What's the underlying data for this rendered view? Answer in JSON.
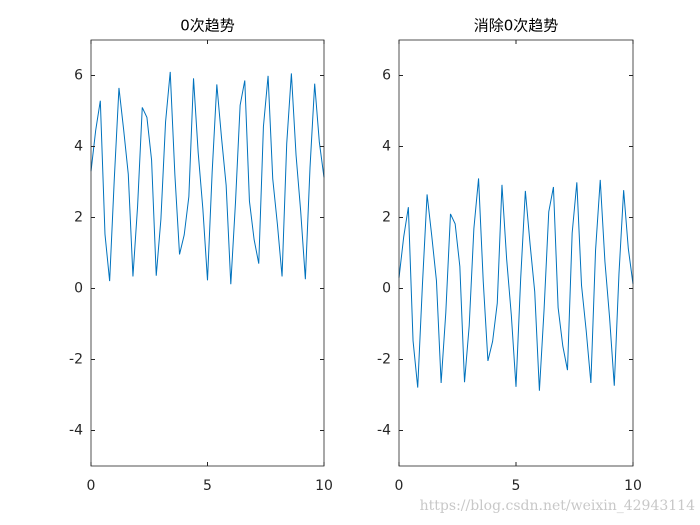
{
  "chart_data": [
    {
      "type": "line",
      "title": "0次趋势",
      "x": [
        0,
        0.2,
        0.4,
        0.6,
        0.8,
        1,
        1.2,
        1.4,
        1.6,
        1.8,
        2,
        2.2,
        2.4,
        2.6,
        2.8,
        3,
        3.2,
        3.4,
        3.6,
        3.8,
        4,
        4.2,
        4.4,
        4.6,
        4.8,
        5,
        5.2,
        5.4,
        5.6,
        5.8,
        6,
        6.2,
        6.4,
        6.6,
        6.8,
        7,
        7.2,
        7.4,
        7.6,
        7.8,
        8,
        8.2,
        8.4,
        8.6,
        8.8,
        9,
        9.2,
        9.4,
        9.6,
        9.8,
        10
      ],
      "series": [
        {
          "color": "#0072bd",
          "values": [
            3.3,
            4.45,
            5.29,
            1.53,
            0.21,
            3.09,
            5.65,
            4.48,
            3.22,
            0.34,
            2.32,
            5.1,
            4.82,
            3.62,
            0.36,
            1.95,
            4.69,
            6.1,
            3.2,
            0.96,
            1.51,
            2.59,
            5.92,
            3.83,
            2.25,
            0.23,
            3.28,
            5.75,
            4.26,
            2.91,
            0.12,
            2.41,
            5.16,
            5.86,
            2.46,
            1.38,
            0.7,
            4.56,
            5.99,
            3.09,
            1.81,
            0.34,
            4.08,
            6.06,
            3.76,
            2.17,
            0.26,
            3.41,
            5.77,
            4.12,
            3.13
          ]
        }
      ],
      "xlim": [
        0,
        10
      ],
      "xticks": [
        0,
        5,
        10
      ],
      "ylim": [
        -5,
        7
      ],
      "yticks": [
        -4,
        -2,
        0,
        2,
        4,
        6
      ]
    },
    {
      "type": "line",
      "title": "消除0次趋势",
      "x": [
        0,
        0.2,
        0.4,
        0.6,
        0.8,
        1,
        1.2,
        1.4,
        1.6,
        1.8,
        2,
        2.2,
        2.4,
        2.6,
        2.8,
        3,
        3.2,
        3.4,
        3.6,
        3.8,
        4,
        4.2,
        4.4,
        4.6,
        4.8,
        5,
        5.2,
        5.4,
        5.6,
        5.8,
        6,
        6.2,
        6.4,
        6.6,
        6.8,
        7,
        7.2,
        7.4,
        7.6,
        7.8,
        8,
        8.2,
        8.4,
        8.6,
        8.8,
        9,
        9.2,
        9.4,
        9.6,
        9.8,
        10
      ],
      "series": [
        {
          "color": "#0072bd",
          "values": [
            0.3,
            1.45,
            2.29,
            -1.47,
            -2.79,
            0.09,
            2.65,
            1.48,
            0.22,
            -2.66,
            -0.68,
            2.1,
            1.82,
            0.62,
            -2.64,
            -1.05,
            1.69,
            3.1,
            0.2,
            -2.04,
            -1.49,
            -0.41,
            2.92,
            0.83,
            -0.75,
            -2.77,
            0.28,
            2.75,
            1.26,
            -0.09,
            -2.88,
            -0.59,
            2.16,
            2.86,
            -0.54,
            -1.62,
            -2.3,
            1.56,
            2.99,
            0.09,
            -1.19,
            -2.66,
            1.08,
            3.06,
            0.76,
            -0.83,
            -2.74,
            0.41,
            2.77,
            1.12,
            0.13
          ]
        }
      ],
      "xlim": [
        0,
        10
      ],
      "xticks": [
        0,
        5,
        10
      ],
      "ylim": [
        -5,
        7
      ],
      "yticks": [
        -4,
        -2,
        0,
        2,
        4,
        6
      ]
    }
  ],
  "watermark": "https://blog.csdn.net/weixin_42943114"
}
